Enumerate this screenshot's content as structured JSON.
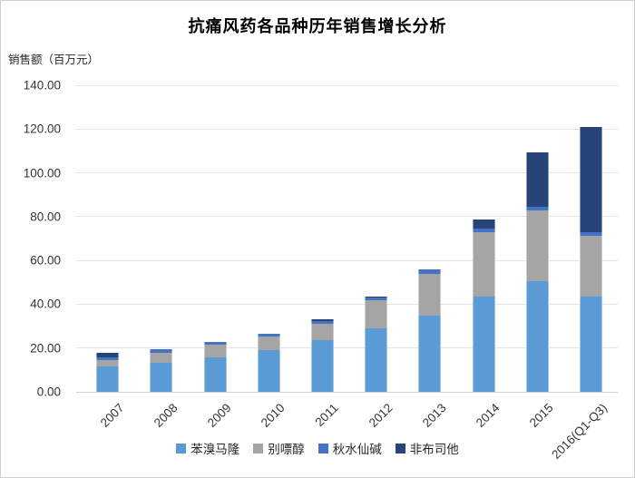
{
  "chart_data": {
    "type": "bar",
    "stacked": true,
    "title": "抗痛风药各品种历年销售增长分析",
    "ylabel": "销售额（百万元）",
    "xlabel": "",
    "categories": [
      "2007",
      "2008",
      "2009",
      "2010",
      "2011",
      "2012",
      "2013",
      "2014",
      "2015",
      "2016(Q1-Q3)"
    ],
    "series": [
      {
        "name": "苯溴马隆",
        "color": "#5B9BD5",
        "values": [
          11.5,
          13.3,
          15.9,
          19.1,
          23.8,
          29.0,
          34.7,
          43.5,
          50.5,
          43.5
        ]
      },
      {
        "name": "别嘌醇",
        "color": "#A5A5A5",
        "values": [
          3.0,
          4.5,
          5.7,
          6.3,
          7.4,
          12.9,
          19.0,
          29.3,
          32.3,
          27.7
        ]
      },
      {
        "name": "秋水仙碱",
        "color": "#4472C4",
        "values": [
          1.4,
          1.6,
          1.1,
          1.3,
          1.0,
          1.0,
          2.3,
          1.7,
          1.8,
          1.8
        ]
      },
      {
        "name": "非布司他",
        "color": "#264478",
        "values": [
          1.9,
          0,
          0,
          0,
          0.8,
          0.5,
          0,
          4.2,
          24.8,
          48.0
        ]
      }
    ],
    "totals": [
      17.8,
      19.4,
      22.7,
      26.7,
      33.0,
      43.4,
      56.0,
      78.7,
      109.4,
      121.0
    ],
    "ylim": [
      0,
      140
    ],
    "ytick_step": 20,
    "ytick_labels": [
      "0.00",
      "20.00",
      "40.00",
      "60.00",
      "80.00",
      "100.00",
      "120.00",
      "140.00"
    ],
    "grid": true,
    "legend_position": "bottom"
  }
}
